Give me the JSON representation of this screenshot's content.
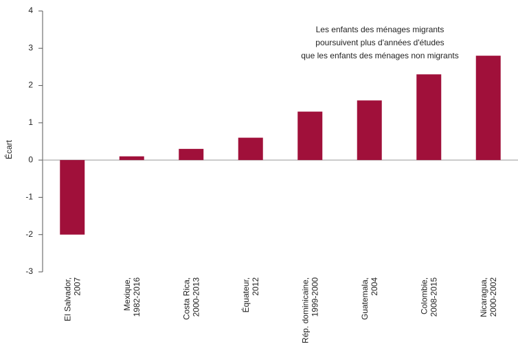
{
  "chart_data": {
    "type": "bar",
    "y_label": "Écart",
    "annotation": [
      "Les enfants des ménages migrants",
      "poursuivent plus d'années d'études",
      "que les enfants des ménages non migrants"
    ],
    "categories": [
      "El Salvador,\n2007",
      "Mexique,\n1982-2016",
      "Costa Rica,\n2000-2013",
      "Équateur,\n2012",
      "Rép. dominicaine,\n1999-2000",
      "Guatemala,\n2004",
      "Colombie,\n2008-2015",
      "Nicaragua,\n2000-2002"
    ],
    "values": [
      -2,
      0.1,
      0.3,
      0.6,
      1.3,
      1.6,
      2.3,
      2.8
    ],
    "color": "#a0103a",
    "ylim": [
      -3,
      4
    ],
    "yticks": [
      -3,
      -2,
      -1,
      0,
      1,
      2,
      3,
      4
    ]
  }
}
